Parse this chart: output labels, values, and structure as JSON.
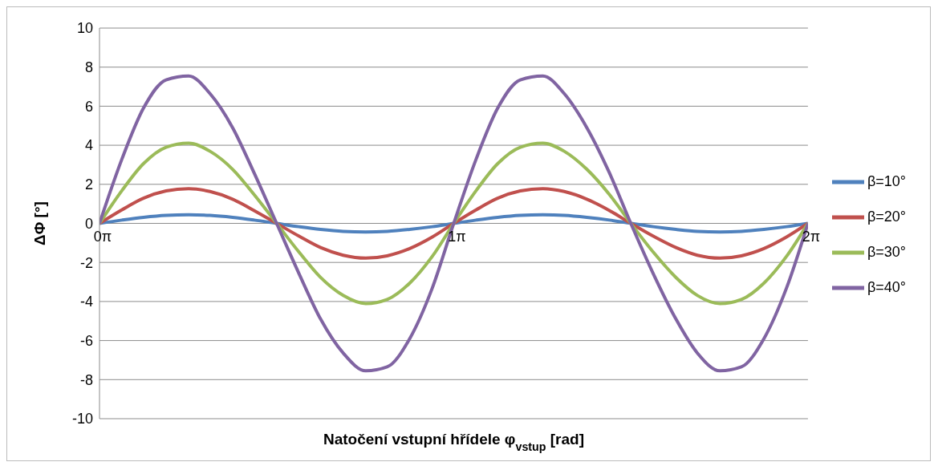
{
  "chart_data": {
    "type": "line",
    "xlabel": "Natočení vstupní hřídele  φ$_{vstup}$ [rad]",
    "ylabel": "ΔΦ [°]",
    "x": [
      0,
      0.2,
      0.39,
      0.59,
      0.79,
      0.98,
      1.18,
      1.37,
      1.57,
      1.77,
      1.96,
      2.16,
      2.36,
      2.55,
      2.75,
      2.95,
      3.14,
      3.34,
      3.53,
      3.73,
      3.93,
      4.12,
      4.32,
      4.52,
      4.71,
      4.91,
      5.11,
      5.3,
      5.5,
      5.69,
      5.89,
      6.09,
      6.28
    ],
    "series": [
      {
        "name": "β=10°",
        "color": "#4f81bd",
        "values": [
          0,
          0.17,
          0.31,
          0.41,
          0.44,
          0.41,
          0.31,
          0.17,
          0,
          -0.17,
          -0.31,
          -0.41,
          -0.44,
          -0.41,
          -0.31,
          -0.17,
          0,
          0.17,
          0.31,
          0.41,
          0.44,
          0.41,
          0.31,
          0.17,
          0,
          -0.17,
          -0.31,
          -0.41,
          -0.44,
          -0.41,
          -0.31,
          -0.17,
          0
        ]
      },
      {
        "name": "β=20°",
        "color": "#c0504d",
        "values": [
          0,
          0.7,
          1.29,
          1.66,
          1.78,
          1.63,
          1.24,
          0.66,
          0,
          -0.66,
          -1.24,
          -1.63,
          -1.78,
          -1.66,
          -1.29,
          -0.7,
          0,
          0.7,
          1.29,
          1.66,
          1.78,
          1.63,
          1.24,
          0.66,
          0,
          -0.66,
          -1.24,
          -1.63,
          -1.78,
          -1.66,
          -1.29,
          -0.7,
          0
        ]
      },
      {
        "name": "β=30°",
        "color": "#9bbb59",
        "values": [
          0,
          1.69,
          3.06,
          3.9,
          4.11,
          3.69,
          2.77,
          1.48,
          0,
          -1.48,
          -2.77,
          -3.69,
          -4.11,
          -3.9,
          -3.06,
          -1.69,
          0,
          1.69,
          3.06,
          3.9,
          4.11,
          3.69,
          2.77,
          1.48,
          0,
          -1.48,
          -2.77,
          -3.69,
          -4.11,
          -3.9,
          -3.06,
          -1.69,
          0
        ]
      },
      {
        "name": "β=40°",
        "color": "#8064a2",
        "values": [
          0,
          3.31,
          5.9,
          7.35,
          7.55,
          6.64,
          4.9,
          2.59,
          0,
          -2.59,
          -4.9,
          -6.64,
          -7.55,
          -7.35,
          -5.9,
          -3.31,
          0,
          3.31,
          5.9,
          7.35,
          7.55,
          6.64,
          4.9,
          2.59,
          0,
          -2.59,
          -4.9,
          -6.64,
          -7.55,
          -7.35,
          -5.9,
          -3.31,
          0
        ]
      }
    ],
    "xlim": [
      0,
      6.28
    ],
    "xticks": [
      {
        "value": 0,
        "label": "0π"
      },
      {
        "value": 3.14,
        "label": "1π"
      },
      {
        "value": 6.28,
        "label": "2π"
      }
    ],
    "ylim": [
      -10,
      10
    ],
    "yticks": [
      -10,
      -8,
      -6,
      -4,
      -2,
      0,
      2,
      4,
      6,
      8,
      10
    ],
    "grid": "y",
    "legend": "right",
    "marker": "none",
    "line_style": "solid"
  }
}
